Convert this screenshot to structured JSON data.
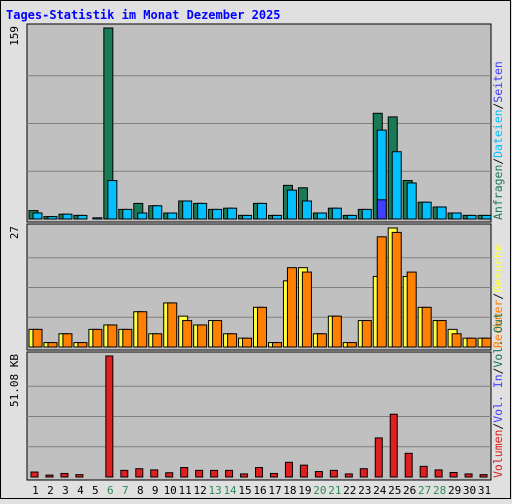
{
  "colors": {
    "background": "#e0e0e0",
    "panel": "#c0c0c0",
    "grid": "#808080",
    "title": "#0000ff",
    "hits": "#1b7a56",
    "files": "#00c0ff",
    "pages": "#4040ff",
    "visits": "#ffff40",
    "sites": "#ff8000",
    "kbytes": "#e02020",
    "weekend_label": "#2e8b57",
    "weekday_label": "#000000"
  },
  "chart_data": {
    "type": "bar",
    "title": "Tages-Statistik im Monat Dezember 2025",
    "categories": [
      "1",
      "2",
      "3",
      "4",
      "5",
      "6",
      "7",
      "8",
      "9",
      "10",
      "11",
      "12",
      "13",
      "14",
      "15",
      "16",
      "17",
      "18",
      "19",
      "20",
      "21",
      "22",
      "23",
      "24",
      "25",
      "26",
      "27",
      "28",
      "29",
      "30",
      "31"
    ],
    "weekend_days": [
      "6",
      "7",
      "13",
      "14",
      "20",
      "21",
      "27",
      "28"
    ],
    "panels": [
      {
        "name": "hits",
        "max_label": "159",
        "ymax": 159,
        "gridlines": [
          0.25,
          0.5,
          0.75
        ],
        "side_label": [
          {
            "text": "Anfragen",
            "color": "#1b7a56"
          },
          {
            "text": "/",
            "color": "#000000"
          },
          {
            "text": "Dateien",
            "color": "#00c0ff"
          },
          {
            "text": "/",
            "color": "#000000"
          },
          {
            "text": "Seiten",
            "color": "#4040ff"
          }
        ],
        "series": [
          {
            "name": "Anfragen",
            "color": "#1b7a56",
            "values": [
              7,
              2,
              4,
              3,
              0,
              159,
              8,
              13,
              11,
              5,
              15,
              13,
              8,
              9,
              3,
              13,
              3,
              28,
              26,
              5,
              9,
              3,
              8,
              88,
              85,
              32,
              14,
              10,
              5,
              3,
              3
            ]
          },
          {
            "name": "Dateien",
            "color": "#00c0ff",
            "values": [
              5,
              2,
              4,
              3,
              1,
              32,
              8,
              5,
              11,
              5,
              15,
              13,
              8,
              9,
              3,
              13,
              3,
              24,
              15,
              5,
              9,
              3,
              8,
              74,
              56,
              30,
              14,
              10,
              5,
              3,
              3
            ]
          },
          {
            "name": "Seiten",
            "color": "#4040ff",
            "values": [
              0,
              0,
              0,
              0,
              0,
              0,
              0,
              0,
              0,
              0,
              0,
              0,
              0,
              0,
              0,
              0,
              0,
              0,
              0,
              0,
              0,
              0,
              0,
              16,
              0,
              0,
              0,
              0,
              0,
              0,
              0
            ]
          }
        ]
      },
      {
        "name": "visits",
        "max_label": "27",
        "ymax": 27,
        "gridlines": [
          0.25,
          0.5,
          0.75
        ],
        "side_label": [
          {
            "text": "Rechner",
            "color": "#ff8000"
          },
          {
            "text": "/",
            "color": "#000000"
          },
          {
            "text": "Besuche",
            "color": "#ffff40"
          }
        ],
        "series": [
          {
            "name": "Besuche",
            "color": "#ffff40",
            "values": [
              4,
              1,
              3,
              1,
              4,
              5,
              4,
              8,
              3,
              10,
              7,
              5,
              6,
              3,
              2,
              9,
              1,
              15,
              18,
              3,
              7,
              1,
              6,
              16,
              27,
              16,
              9,
              6,
              4,
              2,
              2
            ]
          },
          {
            "name": "Rechner",
            "color": "#ff8000",
            "values": [
              4,
              1,
              3,
              1,
              4,
              5,
              4,
              8,
              3,
              10,
              6,
              5,
              6,
              3,
              2,
              9,
              1,
              18,
              17,
              3,
              7,
              1,
              6,
              25,
              26,
              17,
              9,
              6,
              3,
              2,
              2
            ]
          }
        ]
      },
      {
        "name": "kbytes",
        "max_label": "51.08 KB",
        "ymax": 51.08,
        "gridlines": [
          0.25,
          0.5,
          0.75
        ],
        "side_label": [
          {
            "text": "Volumen",
            "color": "#e02020"
          },
          {
            "text": "/",
            "color": "#000000"
          },
          {
            "text": "Vol. In",
            "color": "#4040ff"
          },
          {
            "text": "/",
            "color": "#000000"
          },
          {
            "text": "Vol. Out",
            "color": "#1b7a56"
          }
        ],
        "series": [
          {
            "name": "Volumen",
            "color": "#e02020",
            "values": [
              2.1,
              0.8,
              1.5,
              1.0,
              0,
              51.08,
              2.8,
              3.5,
              3.0,
              1.8,
              4.0,
              2.8,
              2.8,
              2.8,
              1.3,
              4.0,
              1.5,
              6.2,
              5.0,
              2.3,
              2.8,
              1.3,
              3.5,
              16.5,
              26.5,
              10.0,
              4.5,
              3.0,
              1.9,
              1.3,
              1.0
            ]
          }
        ]
      }
    ]
  }
}
